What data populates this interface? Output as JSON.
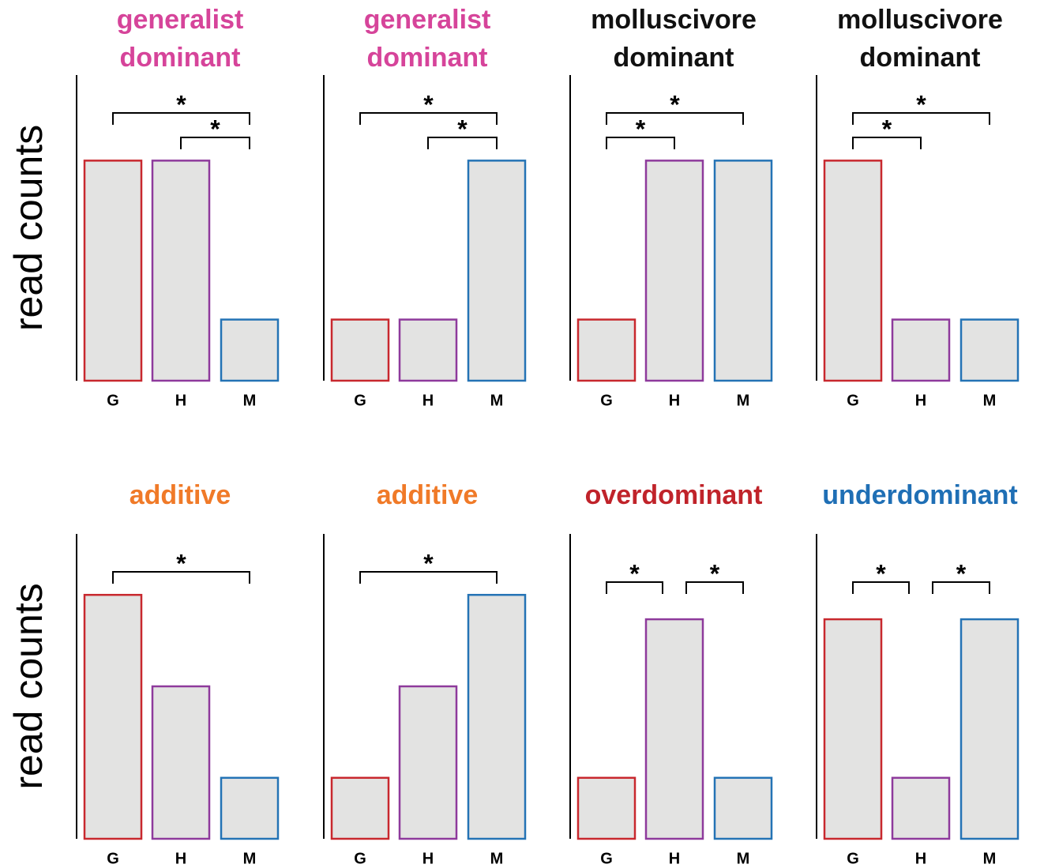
{
  "chart_data": [
    {
      "type": "bar",
      "title": "generalist dominant",
      "title_color": "#d6449a",
      "ylabel": "read counts",
      "categories": [
        "G",
        "H",
        "M"
      ],
      "values": [
        3.6,
        3.6,
        1.0
      ],
      "colors": [
        "#c8282e",
        "#8e3a9c",
        "#2473b5"
      ],
      "ylim": [
        0,
        5
      ],
      "comparisons": [
        {
          "pair": [
            "G",
            "M"
          ],
          "label": "*"
        },
        {
          "pair": [
            "H",
            "M"
          ],
          "label": "*"
        }
      ]
    },
    {
      "type": "bar",
      "title": "generalist dominant",
      "title_color": "#d6449a",
      "categories": [
        "G",
        "H",
        "M"
      ],
      "values": [
        1.0,
        1.0,
        3.6
      ],
      "colors": [
        "#c8282e",
        "#8e3a9c",
        "#2473b5"
      ],
      "ylim": [
        0,
        5
      ],
      "comparisons": [
        {
          "pair": [
            "G",
            "M"
          ],
          "label": "*"
        },
        {
          "pair": [
            "H",
            "M"
          ],
          "label": "*"
        }
      ]
    },
    {
      "type": "bar",
      "title": "molluscivore dominant",
      "title_color": "#111111",
      "categories": [
        "G",
        "H",
        "M"
      ],
      "values": [
        1.0,
        3.6,
        3.6
      ],
      "colors": [
        "#c8282e",
        "#8e3a9c",
        "#2473b5"
      ],
      "ylim": [
        0,
        5
      ],
      "comparisons": [
        {
          "pair": [
            "G",
            "M"
          ],
          "label": "*"
        },
        {
          "pair": [
            "G",
            "H"
          ],
          "label": "*"
        }
      ]
    },
    {
      "type": "bar",
      "title": "molluscivore dominant",
      "title_color": "#111111",
      "categories": [
        "G",
        "H",
        "M"
      ],
      "values": [
        3.6,
        1.0,
        1.0
      ],
      "colors": [
        "#c8282e",
        "#8e3a9c",
        "#2473b5"
      ],
      "ylim": [
        0,
        5
      ],
      "comparisons": [
        {
          "pair": [
            "G",
            "M"
          ],
          "label": "*"
        },
        {
          "pair": [
            "G",
            "H"
          ],
          "label": "*"
        }
      ]
    },
    {
      "type": "bar",
      "title": "additive",
      "title_color": "#f07a28",
      "ylabel": "read counts",
      "categories": [
        "G",
        "H",
        "M"
      ],
      "values": [
        4.0,
        2.5,
        1.0
      ],
      "colors": [
        "#c8282e",
        "#8e3a9c",
        "#2473b5"
      ],
      "ylim": [
        0,
        5
      ],
      "comparisons": [
        {
          "pair": [
            "G",
            "M"
          ],
          "label": "*"
        }
      ]
    },
    {
      "type": "bar",
      "title": "additive",
      "title_color": "#f07a28",
      "categories": [
        "G",
        "H",
        "M"
      ],
      "values": [
        1.0,
        2.5,
        4.0
      ],
      "colors": [
        "#c8282e",
        "#8e3a9c",
        "#2473b5"
      ],
      "ylim": [
        0,
        5
      ],
      "comparisons": [
        {
          "pair": [
            "G",
            "M"
          ],
          "label": "*"
        }
      ]
    },
    {
      "type": "bar",
      "title": "overdominant",
      "title_color": "#c0232a",
      "categories": [
        "G",
        "H",
        "M"
      ],
      "values": [
        1.0,
        3.6,
        1.0
      ],
      "colors": [
        "#c8282e",
        "#8e3a9c",
        "#2473b5"
      ],
      "ylim": [
        0,
        5
      ],
      "comparisons": [
        {
          "pair": [
            "G",
            "H"
          ],
          "label": "*"
        },
        {
          "pair": [
            "H",
            "M"
          ],
          "label": "*"
        }
      ]
    },
    {
      "type": "bar",
      "title": "underdominant",
      "title_color": "#1f6fb5",
      "categories": [
        "G",
        "H",
        "M"
      ],
      "values": [
        3.6,
        1.0,
        3.6
      ],
      "colors": [
        "#c8282e",
        "#8e3a9c",
        "#2473b5"
      ],
      "ylim": [
        0,
        5
      ],
      "comparisons": [
        {
          "pair": [
            "G",
            "H"
          ],
          "label": "*"
        },
        {
          "pair": [
            "H",
            "M"
          ],
          "label": "*"
        }
      ]
    }
  ]
}
